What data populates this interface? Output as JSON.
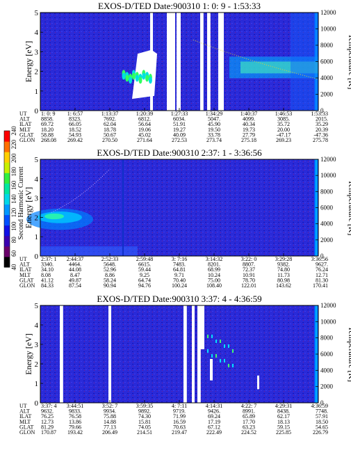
{
  "colorbar": {
    "label": "Second Harmonic Current",
    "ticks": [
      "40",
      "60",
      "80",
      "100",
      "120",
      "140",
      "160",
      "180",
      "200",
      "220",
      "240"
    ],
    "colors": [
      "#000000",
      "#6a006a",
      "#3a00b0",
      "#1010e6",
      "#0050ff",
      "#0098ff",
      "#00d8e8",
      "#00e8a0",
      "#30f040",
      "#c8f000",
      "#ffd000",
      "#ff7000",
      "#ff0000"
    ]
  },
  "chart_data": [
    {
      "type": "heatmap",
      "title": "EXOS-D/TED   Date:900310  1: 0: 9 - 1:53:33",
      "ylabel": "Energy [eV]",
      "y2label": "Temperature [K]",
      "ylim": [
        0,
        5
      ],
      "y2lim": [
        0,
        12000
      ],
      "yticks": [
        "0",
        "1",
        "2",
        "3",
        "4",
        "5"
      ],
      "y2ticks": [
        "0",
        "2000",
        "4000",
        "6000",
        "8000",
        "10000",
        "12000"
      ],
      "row_labels": [
        "UT",
        "ALT",
        "ILAT",
        "MLT",
        "GLAT",
        "GLON"
      ],
      "columns": [
        [
          "1: 0: 9",
          "8858.",
          "69.72",
          "18.20",
          "58.88",
          "268.08"
        ],
        [
          "1: 6:57",
          "8323.",
          "66.05",
          "18.52",
          "54.93",
          "269.42"
        ],
        [
          "1:13:37",
          "7692.",
          "62.04",
          "18.78",
          "50.67",
          "270.50"
        ],
        [
          "1:20:39",
          "6812.",
          "56.64",
          "19.06",
          "45.02",
          "271.64"
        ],
        [
          "1:27:33",
          "6034.",
          "51.91",
          "19.27",
          "40.09",
          "272.53"
        ],
        [
          "1:34:29",
          "5047.",
          "45.90",
          "19.50",
          "33.78",
          "273.74"
        ],
        [
          "1:40:37",
          "4099.",
          "40.34",
          "19.73",
          "27.79",
          "275.18"
        ],
        [
          "1:46:53",
          "3085.",
          "35.72",
          "20.00",
          "-47.17",
          "269.23"
        ],
        [
          "1:53:33",
          "2015.",
          "35.29",
          "20.39",
          "-47.36",
          "275.78"
        ]
      ]
    },
    {
      "type": "heatmap",
      "title": "EXOS-D/TED   Date:900310  2:37: 1 - 3:36:56",
      "ylabel": "Energy [eV]",
      "y2label": "Temperature [K]",
      "ylim": [
        0,
        5
      ],
      "y2lim": [
        0,
        12000
      ],
      "yticks": [
        "0",
        "1",
        "2",
        "3",
        "4",
        "5"
      ],
      "y2ticks": [
        "0",
        "2000",
        "4000",
        "6000",
        "8000",
        "10000",
        "12000"
      ],
      "row_labels": [
        "UT",
        "ALT",
        "ILAT",
        "MLT",
        "GLAT",
        "GLON"
      ],
      "columns": [
        [
          "2:37: 1",
          "3340.",
          "34.10",
          "8.08",
          "41.12",
          "84.33"
        ],
        [
          "2:44:37",
          "4464.",
          "44.08",
          "8.47",
          "49.87",
          "87.54"
        ],
        [
          "2:52:33",
          "5648.",
          "52.96",
          "8.86",
          "58.24",
          "90.94"
        ],
        [
          "2:59:48",
          "6615.",
          "59.44",
          "9.25",
          "64.74",
          "94.76"
        ],
        [
          "3: 7:16",
          "7483.",
          "64.81",
          "9.71",
          "70.40",
          "100.24"
        ],
        [
          "3:14:32",
          "8201.",
          "68.99",
          "10.24",
          "75.00",
          "108.40"
        ],
        [
          "3:22: 0",
          "8807.",
          "72.37",
          "10.91",
          "78.70",
          "122.01"
        ],
        [
          "3:29:28",
          "9382.",
          "74.80",
          "11.73",
          "80.98",
          "143.62"
        ],
        [
          "3:36:56",
          "9627.",
          "76.24",
          "12.71",
          "81.30",
          "170.41"
        ]
      ]
    },
    {
      "type": "heatmap",
      "title": "EXOS-D/TED   Date:900310  3:37: 4 - 4:36:59",
      "ylabel": "Energy [eV]",
      "y2label": "Temperature [K]",
      "ylim": [
        0,
        5
      ],
      "y2lim": [
        0,
        12000
      ],
      "yticks": [
        "0",
        "1",
        "2",
        "3",
        "4",
        "5"
      ],
      "y2ticks": [
        "0",
        "2000",
        "4000",
        "6000",
        "8000",
        "10000",
        "12000"
      ],
      "row_labels": [
        "UT",
        "ALT",
        "ILAT",
        "MLT",
        "GLAT",
        "GLON"
      ],
      "columns": [
        [
          "3:37: 4",
          "9632.",
          "76.25",
          "12.73",
          "81.29",
          "170.87"
        ],
        [
          "3:44:51",
          "9833.",
          "76.58",
          "13.86",
          "79.66",
          "193.42"
        ],
        [
          "3:52: 7",
          "9934.",
          "75.88",
          "14.88",
          "77.13",
          "206.49"
        ],
        [
          "3:59:35",
          "9892.",
          "74.30",
          "15.81",
          "74.05",
          "214.51"
        ],
        [
          "4: 7:11",
          "9719.",
          "71.99",
          "16.59",
          "70.63",
          "219.47"
        ],
        [
          "4:14:31",
          "9426.",
          "69.24",
          "17.19",
          "67.12",
          "222.49"
        ],
        [
          "4:22: 7",
          "8991.",
          "65.89",
          "17.70",
          "63.23",
          "224.52"
        ],
        [
          "4:29:31",
          "8438.",
          "62.17",
          "18.13",
          "59.15",
          "225.85"
        ],
        [
          "4:36:59",
          "7748.",
          "57.91",
          "18.50",
          "54.65",
          "226.79"
        ]
      ]
    }
  ]
}
